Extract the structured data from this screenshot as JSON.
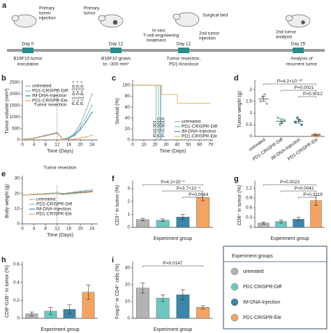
{
  "timeline": {
    "panel": "a",
    "stages": [
      {
        "day": "Day 0",
        "caption": [
          "B16F10 tumor",
          "inoculation"
        ]
      },
      {
        "day": "Day 12",
        "caption": [
          "B16F10 grows",
          "to ~300 mm³"
        ]
      },
      {
        "day": "Day 12",
        "caption": [
          "Tumor resection,",
          "PD1-Knockout"
        ]
      },
      {
        "day": "Day 25",
        "caption": [
          "Analysis of",
          "recurrent tumor"
        ]
      }
    ],
    "notes": [
      [
        "Primary",
        "tumor",
        "injection"
      ],
      [
        "Primary",
        "tumor"
      ],
      [
        "In vivo",
        "T-cell engineering",
        "treatment"
      ],
      [
        "Surgical bed"
      ],
      [
        "2nd tumor",
        "injection"
      ],
      [
        "2nd tumor",
        "analysis"
      ]
    ]
  },
  "legend": {
    "title": "Experiment groups",
    "entries": [
      {
        "name": "untreated",
        "color": "#b3b3b3"
      },
      {
        "name": "PD1-CRISPR-Diff",
        "color": "#6cc7c1"
      },
      {
        "name": "IM-DNA-Injection",
        "color": "#3c86aa"
      },
      {
        "name": "PD1-CRISPR-Ele",
        "color": "#f4a462"
      }
    ]
  },
  "chart_data": [
    {
      "type": "line",
      "panel": "b",
      "ylabel": "Tumor volume (mm³)",
      "xlabel": "Time (Days)",
      "x": [
        0,
        4,
        8,
        12,
        14,
        16,
        18,
        20,
        22,
        24
      ],
      "xlim": [
        0,
        26
      ],
      "xticks": [
        0,
        4,
        8,
        12,
        16,
        20,
        24
      ],
      "ylim": [
        0,
        2500
      ],
      "yticks": [
        0,
        500,
        1000,
        1500,
        2000,
        2500
      ],
      "vline": 12,
      "annotations": [
        "Tumor resection",
        "P=1.6×10⁻⁴",
        "P=1.3×10⁻⁴",
        "P=2.8×10⁻⁵"
      ],
      "series": [
        {
          "name": "untreated",
          "color": "#a9a9a9",
          "values": [
            20,
            80,
            200,
            320,
            30,
            100,
            300,
            700,
            1300,
            2000
          ]
        },
        {
          "name": "PD1-CRISPR-Diff",
          "color": "#6cc7c1",
          "values": [
            20,
            70,
            180,
            300,
            25,
            80,
            250,
            550,
            1000,
            1500
          ]
        },
        {
          "name": "IM-DNA-Injection",
          "color": "#3c86aa",
          "values": [
            20,
            75,
            190,
            310,
            20,
            70,
            200,
            450,
            800,
            1200
          ]
        },
        {
          "name": "PD1-CRISPR-Ele",
          "color": "#f4a462",
          "values": [
            20,
            70,
            170,
            290,
            10,
            20,
            40,
            80,
            130,
            200
          ]
        }
      ]
    },
    {
      "type": "line",
      "panel": "c",
      "ylabel": "Survival (%)",
      "xlabel": "Time (Days)",
      "xlim": [
        0,
        72
      ],
      "xticks": [
        0,
        10,
        20,
        30,
        40,
        50,
        60,
        70
      ],
      "ylim": [
        0,
        105
      ],
      "yticks": [
        0,
        20,
        40,
        60,
        80,
        100
      ],
      "annotations": [
        "P=0.001",
        "P=0.0015",
        "P=0.0019"
      ],
      "series": [
        {
          "name": "untreated",
          "color": "#a9a9a9",
          "x": [
            0,
            21,
            21
          ],
          "values": [
            100,
            100,
            0
          ]
        },
        {
          "name": "PD1-CRISPR-Diff",
          "color": "#6cc7c1",
          "x": [
            0,
            23,
            23
          ],
          "values": [
            100,
            100,
            0
          ]
        },
        {
          "name": "IM-DNA-Injection",
          "color": "#3c86aa",
          "x": [
            0,
            25,
            25
          ],
          "values": [
            100,
            100,
            0
          ]
        },
        {
          "name": "PD1-CRISPR-Ele",
          "color": "#e8b85a",
          "x": [
            0,
            26,
            26,
            40,
            40,
            70
          ],
          "values": [
            100,
            100,
            83,
            83,
            67,
            67
          ]
        }
      ]
    },
    {
      "type": "dot",
      "panel": "d",
      "ylabel": "Tumor weight (g)",
      "categories": [
        "untreated",
        "PD1-CRISPR-Diff",
        "IM-DNA-Injection",
        "PD1-CRISPR-Ele"
      ],
      "values": [
        1.6,
        0.65,
        0.65,
        0.06
      ],
      "errors": [
        0.1,
        0.1,
        0.08,
        0.03
      ],
      "points": [
        [
          1.5,
          1.7,
          1.8,
          1.4
        ],
        [
          0.8,
          0.5,
          0.6,
          0.7
        ],
        [
          0.6,
          0.8,
          0.7,
          0.5
        ],
        [
          0.05,
          0.1,
          0.0,
          0.08
        ]
      ],
      "ylim": [
        0,
        2.3
      ],
      "yticks": [
        0,
        0.5,
        1,
        1.5,
        2
      ],
      "brackets": [
        {
          "groups": [
            "untreated",
            "PD1-CRISPR-Ele"
          ],
          "label": "P=4.2×10⁻¹⁰"
        },
        {
          "groups": [
            "PD1-CRISPR-Diff",
            "PD1-CRISPR-Ele"
          ],
          "label": "P=0.0021"
        },
        {
          "groups": [
            "IM-DNA-Injection",
            "PD1-CRISPR-Ele"
          ],
          "label": "P=0.0012"
        }
      ]
    },
    {
      "type": "line",
      "panel": "e",
      "ylabel": "Body weight (g)",
      "xlabel": "Time (Days)",
      "x": [
        0,
        4,
        8,
        12,
        14,
        16,
        18,
        20,
        22,
        24
      ],
      "xlim": [
        0,
        26
      ],
      "xticks": [
        0,
        4,
        8,
        12,
        16,
        20,
        24
      ],
      "ylim": [
        0,
        30
      ],
      "yticks": [
        0,
        10,
        20,
        30
      ],
      "vline": 12,
      "annotations": [
        "Tumor resection"
      ],
      "series": [
        {
          "name": "untreated",
          "color": "#a9a9a9",
          "values": [
            19,
            19.5,
            20,
            20.5,
            20,
            20.5,
            21,
            21.5,
            22,
            22.5
          ]
        },
        {
          "name": "PD1-CRISPR-Diff",
          "color": "#6cc7c1",
          "values": [
            19,
            19.3,
            19.8,
            20.2,
            19.8,
            20.3,
            20.6,
            21,
            21.3,
            21.6
          ]
        },
        {
          "name": "IM-DNA-Injection",
          "color": "#3c86aa",
          "values": [
            19,
            19.4,
            19.7,
            20,
            19.6,
            20,
            20.4,
            20.8,
            21,
            21.4
          ]
        },
        {
          "name": "PD1-CRISPR-Ele",
          "color": "#f4a462",
          "values": [
            19,
            19.2,
            19.5,
            19.9,
            19.3,
            19.7,
            20,
            20.3,
            20.6,
            21
          ]
        }
      ]
    },
    {
      "type": "bar",
      "panel": "f",
      "ylabel": "CD3⁺ in tumor (%)",
      "xlabel": "Experiment group",
      "categories": [
        null,
        null,
        null,
        null
      ],
      "values": [
        0.6,
        0.55,
        0.8,
        2.3
      ],
      "errors": [
        0.1,
        0.1,
        0.2,
        0.25
      ],
      "ylim": [
        0,
        3.4
      ],
      "yticks": [
        0,
        1,
        2,
        3
      ],
      "brackets": [
        {
          "groups": [
            "untreated",
            "PD1-CRISPR-Ele"
          ],
          "label": "P=4.2×10⁻⁴"
        },
        {
          "groups": [
            "PD1-CRISPR-Diff",
            "PD1-CRISPR-Ele"
          ],
          "label": "P=3.7×10⁻⁴"
        },
        {
          "groups": [
            "IM-DNA-Injection",
            "PD1-CRISPR-Ele"
          ],
          "label": "P=0.0014"
        }
      ]
    },
    {
      "type": "bar",
      "panel": "g",
      "ylabel": "CD8⁺ in tumor (%)",
      "xlabel": "Experiment group",
      "categories": [
        null,
        null,
        null,
        null
      ],
      "values": [
        0.13,
        0.18,
        0.25,
        0.82
      ],
      "errors": [
        0.03,
        0.05,
        0.06,
        0.15
      ],
      "ylim": [
        0,
        1.35
      ],
      "yticks": [
        0,
        0.3,
        0.6,
        0.9,
        1.2
      ],
      "brackets": [
        {
          "groups": [
            "untreated",
            "PD1-CRISPR-Ele"
          ],
          "label": "P=0.0023"
        },
        {
          "groups": [
            "PD1-CRISPR-Diff",
            "PD1-CRISPR-Ele"
          ],
          "label": "P=0.0042"
        },
        {
          "groups": [
            "IM-DNA-Injection",
            "PD1-CRISPR-Ele"
          ],
          "label": "P=0.0119"
        }
      ]
    },
    {
      "type": "bar",
      "panel": "h",
      "ylabel": "CD8⁺GzB⁺ in tumor (%)",
      "xlabel": "Experiment group",
      "categories": [
        null,
        null,
        null,
        null
      ],
      "values": [
        0.05,
        0.08,
        0.1,
        0.29
      ],
      "errors": [
        0.02,
        0.04,
        0.05,
        0.08
      ],
      "ylim": [
        0,
        0.6
      ],
      "yticks": [
        0,
        0.2,
        0.4,
        0.6
      ]
    },
    {
      "type": "bar",
      "panel": "i",
      "ylabel": "Foxp3⁺ in CD4⁺ cells (%)",
      "xlabel": "Experiment group",
      "categories": [
        null,
        null,
        null,
        null
      ],
      "values": [
        18,
        12,
        14,
        6.5
      ],
      "errors": [
        3,
        2,
        3,
        1
      ],
      "ylim": [
        0,
        32
      ],
      "yticks": [
        0,
        10,
        20,
        30
      ],
      "brackets": [
        {
          "groups": [
            "untreated",
            "PD1-CRISPR-Ele"
          ],
          "label": "P=0.0147"
        }
      ]
    }
  ]
}
